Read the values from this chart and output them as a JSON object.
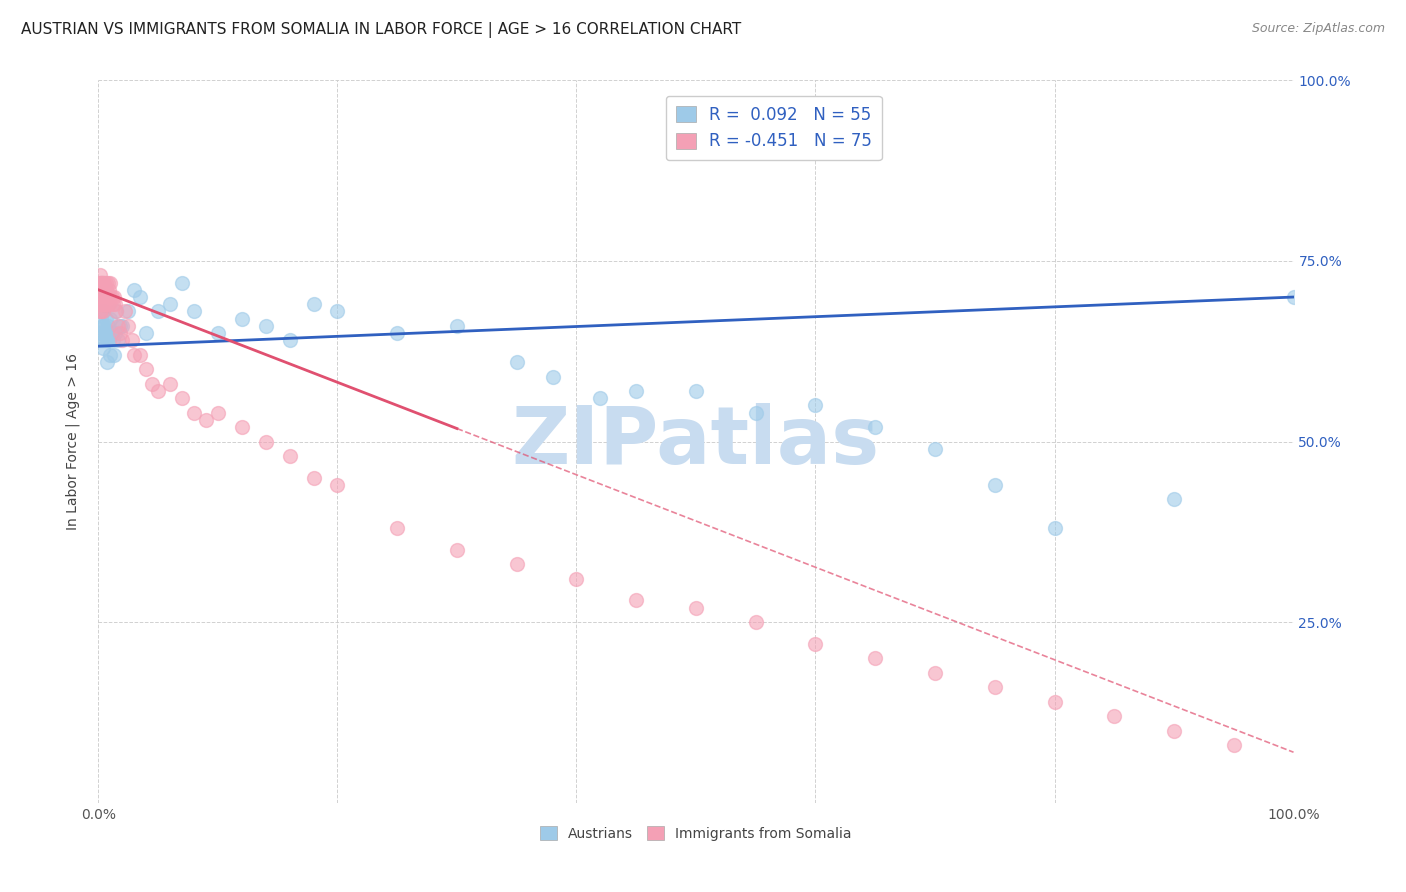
{
  "title": "AUSTRIAN VS IMMIGRANTS FROM SOMALIA IN LABOR FORCE | AGE > 16 CORRELATION CHART",
  "source": "Source: ZipAtlas.com",
  "ylabel": "In Labor Force | Age > 16",
  "xlim": [
    0.0,
    1.0
  ],
  "ylim": [
    0.0,
    1.0
  ],
  "R_austrians": 0.092,
  "N_austrians": 55,
  "R_somalia": -0.451,
  "N_somalia": 75,
  "color_austrians": "#9ECAE8",
  "color_somalia": "#F4A0B5",
  "trendline_color_austrians": "#3060C0",
  "trendline_color_somalia": "#E05070",
  "background_color": "#FFFFFF",
  "grid_color": "#CCCCCC",
  "watermark_color": "#C8DCF0",
  "legend_color": "#3060C0",
  "austrians_x": [
    0.001,
    0.002,
    0.002,
    0.003,
    0.003,
    0.004,
    0.004,
    0.005,
    0.005,
    0.006,
    0.006,
    0.007,
    0.007,
    0.008,
    0.008,
    0.009,
    0.01,
    0.01,
    0.011,
    0.012,
    0.013,
    0.014,
    0.015,
    0.016,
    0.018,
    0.02,
    0.025,
    0.03,
    0.035,
    0.04,
    0.05,
    0.06,
    0.07,
    0.08,
    0.1,
    0.12,
    0.14,
    0.16,
    0.18,
    0.2,
    0.25,
    0.3,
    0.35,
    0.38,
    0.42,
    0.45,
    0.5,
    0.55,
    0.6,
    0.65,
    0.7,
    0.75,
    0.8,
    0.9,
    1.0
  ],
  "austrians_y": [
    0.65,
    0.67,
    0.64,
    0.66,
    0.65,
    0.63,
    0.68,
    0.66,
    0.64,
    0.65,
    0.67,
    0.61,
    0.64,
    0.65,
    0.66,
    0.64,
    0.62,
    0.67,
    0.65,
    0.64,
    0.62,
    0.65,
    0.68,
    0.64,
    0.66,
    0.66,
    0.68,
    0.71,
    0.7,
    0.65,
    0.68,
    0.69,
    0.72,
    0.68,
    0.65,
    0.67,
    0.66,
    0.64,
    0.69,
    0.68,
    0.65,
    0.66,
    0.61,
    0.59,
    0.56,
    0.57,
    0.57,
    0.54,
    0.55,
    0.52,
    0.49,
    0.44,
    0.38,
    0.42,
    0.7
  ],
  "somalia_x": [
    0.001,
    0.001,
    0.001,
    0.001,
    0.001,
    0.002,
    0.002,
    0.002,
    0.002,
    0.002,
    0.002,
    0.003,
    0.003,
    0.003,
    0.003,
    0.003,
    0.004,
    0.004,
    0.004,
    0.004,
    0.005,
    0.005,
    0.005,
    0.006,
    0.006,
    0.006,
    0.007,
    0.007,
    0.008,
    0.008,
    0.009,
    0.009,
    0.01,
    0.01,
    0.011,
    0.012,
    0.013,
    0.014,
    0.015,
    0.016,
    0.018,
    0.02,
    0.022,
    0.025,
    0.028,
    0.03,
    0.035,
    0.04,
    0.045,
    0.05,
    0.06,
    0.07,
    0.08,
    0.09,
    0.1,
    0.12,
    0.14,
    0.16,
    0.18,
    0.2,
    0.25,
    0.3,
    0.35,
    0.4,
    0.45,
    0.5,
    0.55,
    0.6,
    0.65,
    0.7,
    0.75,
    0.8,
    0.85,
    0.9,
    0.95
  ],
  "somalia_y": [
    0.7,
    0.72,
    0.68,
    0.71,
    0.73,
    0.69,
    0.72,
    0.7,
    0.68,
    0.71,
    0.72,
    0.7,
    0.72,
    0.71,
    0.69,
    0.7,
    0.72,
    0.71,
    0.7,
    0.68,
    0.72,
    0.7,
    0.69,
    0.71,
    0.72,
    0.7,
    0.7,
    0.69,
    0.72,
    0.7,
    0.71,
    0.69,
    0.7,
    0.72,
    0.7,
    0.69,
    0.7,
    0.69,
    0.68,
    0.66,
    0.65,
    0.64,
    0.68,
    0.66,
    0.64,
    0.62,
    0.62,
    0.6,
    0.58,
    0.57,
    0.58,
    0.56,
    0.54,
    0.53,
    0.54,
    0.52,
    0.5,
    0.48,
    0.45,
    0.44,
    0.38,
    0.35,
    0.33,
    0.31,
    0.28,
    0.27,
    0.25,
    0.22,
    0.2,
    0.18,
    0.16,
    0.14,
    0.12,
    0.1,
    0.08
  ]
}
